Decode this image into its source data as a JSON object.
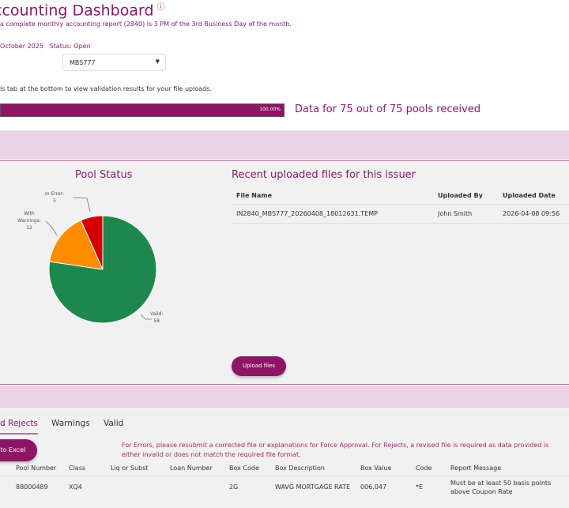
{
  "header": {
    "title": "ccounting Dashboard",
    "info_icon": "info-circle-icon",
    "subtitle": "a complete monthly accounting report (2840) is 3 PM of the 3rd Business Day of the month.",
    "period": "October 2025",
    "status": "Status: Open",
    "issuer_select": {
      "value": "MBS777"
    },
    "hint": "ls tab at the bottom to view validation results for your file uploads."
  },
  "progress": {
    "percent": 100,
    "label": "100.00%",
    "summary": "Data for 75 out of 75 pools received"
  },
  "pool_status": {
    "title": "Pool Status"
  },
  "chart_data": {
    "type": "pie",
    "title": "Pool Status",
    "categories": [
      "Valid",
      "With Warnings",
      "In Error"
    ],
    "values": [
      58,
      12,
      5
    ],
    "colors": [
      "#1e874b",
      "#ff8c00",
      "#d40000"
    ],
    "labels": [
      [
        "Valid:",
        "58"
      ],
      [
        "With",
        "Warnings:",
        "12"
      ],
      [
        "In Error:",
        "5"
      ]
    ]
  },
  "recent_files": {
    "title": "Recent uploaded files for this issuer",
    "columns": [
      "File Name",
      "Uploaded By",
      "Uploaded Date"
    ],
    "rows": [
      [
        "IN2840_MBS777_20260408_18012631.TEMP",
        "John Smith",
        "2026-04-08 09:56"
      ]
    ],
    "upload_label": "Upload files"
  },
  "tabs": [
    "d Rejects",
    "Warnings",
    "Valid"
  ],
  "export_label": "t to Excel",
  "note": "For Errors, please resubmit a corrected file or explanations for Force Approval. For Rejects, a revised file is required as data provided is either invalid or does not match the required file format.",
  "results": {
    "columns": [
      "Pool Number",
      "Class",
      "Liq or Subst",
      "Loan Number",
      "Box Code",
      "Box Description",
      "Box Value",
      "Code",
      "Report Message"
    ],
    "rows": [
      [
        "88000489",
        "XQ4",
        "",
        "",
        "2G",
        "WAVG MORTGAGE RATE",
        "006.047",
        "*E",
        "Must be at least 50 basis points above Coupon Rate"
      ]
    ]
  }
}
